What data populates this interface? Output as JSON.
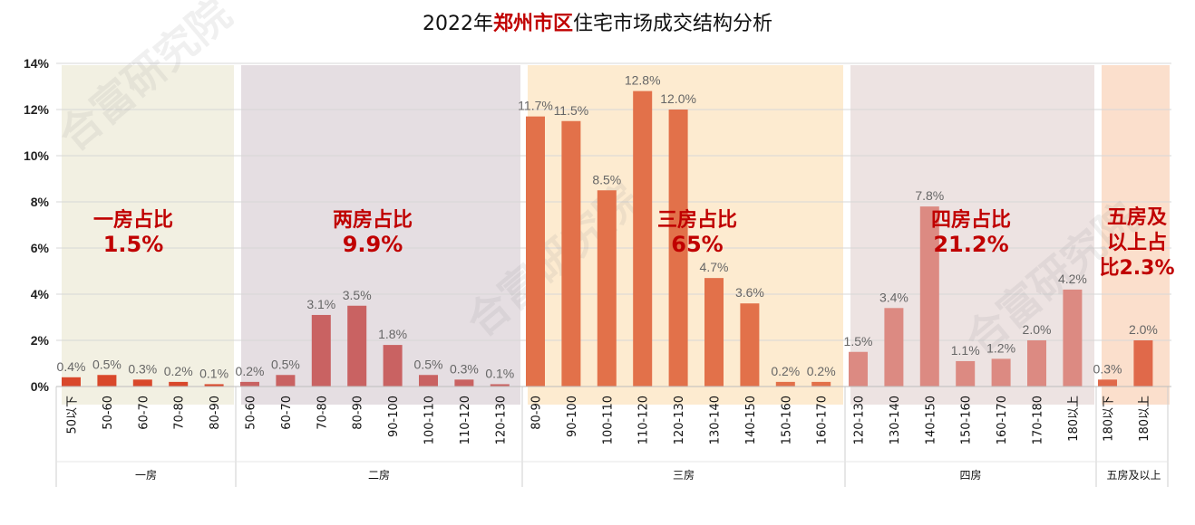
{
  "title": {
    "prefix": "2022年",
    "highlight": "郑州市区",
    "suffix": "住宅市场成交结构分析"
  },
  "watermark": "合富研究院",
  "colors": {
    "bar_dark": "#d9482b",
    "bar_rose": "#c96262",
    "bar_orange": "#e2714a",
    "bar_pink": "#dc8a82",
    "bar_coral": "#e0694a",
    "bg_1": "#f1efe0",
    "bg_2": "#e3dbe0",
    "bg_3": "#fde9cc",
    "bg_4": "#ebe1df",
    "bg_5": "#fbdcc8",
    "annotation": "#c00000"
  },
  "chart_data": {
    "type": "bar",
    "title": "2022年郑州市区住宅市场成交结构分析",
    "ylim": [
      0,
      14
    ],
    "yticks": [
      "0%",
      "2%",
      "4%",
      "6%",
      "8%",
      "10%",
      "12%",
      "14%"
    ],
    "grid": true,
    "legend": "none",
    "groups": [
      {
        "name": "一房",
        "annotation": [
          "一房占比",
          "1.5%"
        ],
        "categories": [
          "50以下",
          "50-60",
          "60-70",
          "70-80",
          "80-90"
        ],
        "values": [
          0.4,
          0.5,
          0.3,
          0.2,
          0.1
        ],
        "labels": [
          "0.4%",
          "0.5%",
          "0.3%",
          "0.2%",
          "0.1%"
        ]
      },
      {
        "name": "二房",
        "annotation": [
          "两房占比",
          "9.9%"
        ],
        "categories": [
          "50-60",
          "60-70",
          "70-80",
          "80-90",
          "90-100",
          "100-110",
          "110-120",
          "120-130"
        ],
        "values": [
          0.2,
          0.5,
          3.1,
          3.5,
          1.8,
          0.5,
          0.3,
          0.1
        ],
        "labels": [
          "0.2%",
          "0.5%",
          "3.1%",
          "3.5%",
          "1.8%",
          "0.5%",
          "0.3%",
          "0.1%"
        ]
      },
      {
        "name": "三房",
        "annotation": [
          "三房占比",
          "65%"
        ],
        "categories": [
          "80-90",
          "90-100",
          "100-110",
          "110-120",
          "120-130",
          "130-140",
          "140-150",
          "150-160",
          "160-170"
        ],
        "values": [
          11.7,
          11.5,
          8.5,
          12.8,
          12.0,
          4.7,
          3.6,
          0.2,
          0.2
        ],
        "labels": [
          "11.7%",
          "11.5%",
          "8.5%",
          "12.8%",
          "12.0%",
          "4.7%",
          "3.6%",
          "0.2%",
          "0.2%"
        ]
      },
      {
        "name": "四房",
        "annotation": [
          "四房占比",
          "21.2%"
        ],
        "categories": [
          "120-130",
          "130-140",
          "140-150",
          "150-160",
          "160-170",
          "170-180",
          "180以上"
        ],
        "values": [
          1.5,
          3.4,
          7.8,
          1.1,
          1.2,
          2.0,
          4.2
        ],
        "labels": [
          "1.5%",
          "3.4%",
          "7.8%",
          "1.1%",
          "1.2%",
          "2.0%",
          "4.2%"
        ]
      },
      {
        "name": "五房及以上",
        "annotation": [
          "五房及",
          "以上占",
          "比2.3%"
        ],
        "categories": [
          "180以下",
          "180以上"
        ],
        "values": [
          0.3,
          2.0
        ],
        "labels": [
          "0.3%",
          "2.0%"
        ]
      }
    ]
  }
}
